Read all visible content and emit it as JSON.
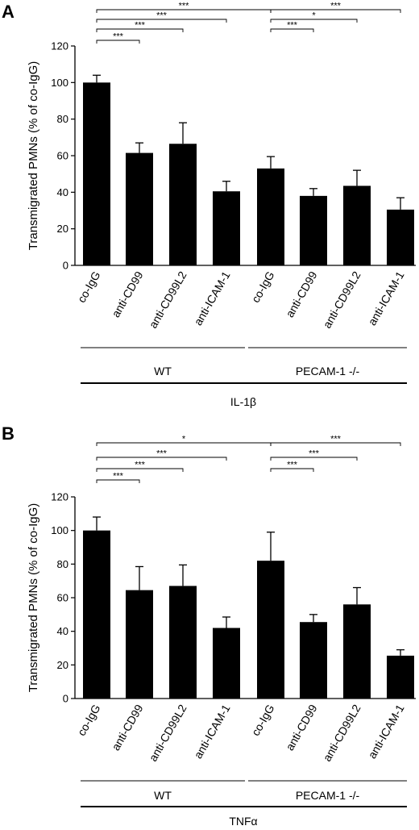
{
  "chart_data": [
    {
      "type": "bar",
      "panel_label": "A",
      "ylabel": "Transmigrated PMNs (% of co-IgG)",
      "ylim": [
        0,
        120
      ],
      "yticks": [
        0,
        20,
        40,
        60,
        80,
        100,
        120
      ],
      "categories": [
        "co-IgG",
        "anti-CD99",
        "anti-CD99L2",
        "anti-ICAM-1",
        "co-IgG",
        "anti-CD99",
        "anti-CD99L2",
        "anti-ICAM-1"
      ],
      "values": [
        100,
        61.5,
        66.5,
        40.5,
        53,
        38,
        43.5,
        30.5
      ],
      "errors": [
        4,
        5.5,
        11.5,
        5.5,
        6.5,
        4,
        8.5,
        6.5
      ],
      "groups": [
        {
          "label": "WT",
          "from": 0,
          "to": 3
        },
        {
          "label": "PECAM-1 -/-",
          "from": 4,
          "to": 7
        }
      ],
      "stimulus": "IL-1β",
      "significance": [
        {
          "from": 0,
          "to": 4,
          "label": "***"
        },
        {
          "from": 0,
          "to": 3,
          "label": "***"
        },
        {
          "from": 0,
          "to": 2,
          "label": "***"
        },
        {
          "from": 0,
          "to": 1,
          "label": "***"
        },
        {
          "from": 4,
          "to": 7,
          "label": "***"
        },
        {
          "from": 4,
          "to": 6,
          "label": "*"
        },
        {
          "from": 4,
          "to": 5,
          "label": "***"
        }
      ]
    },
    {
      "type": "bar",
      "panel_label": "B",
      "ylabel": "Transmigrated PMNs (% of co-IgG)",
      "ylim": [
        0,
        120
      ],
      "yticks": [
        0,
        20,
        40,
        60,
        80,
        100,
        120
      ],
      "categories": [
        "co-IgG",
        "anti-CD99",
        "anti-CD99L2",
        "anti-ICAM-1",
        "co-IgG",
        "anti-CD99",
        "anti-CD99L2",
        "anti-ICAM-1"
      ],
      "values": [
        100,
        64.5,
        67,
        42,
        82,
        45.5,
        56,
        25.5
      ],
      "errors": [
        8,
        14,
        12.5,
        6.5,
        17,
        4.5,
        10,
        3.5
      ],
      "groups": [
        {
          "label": "WT",
          "from": 0,
          "to": 3
        },
        {
          "label": "PECAM-1 -/-",
          "from": 4,
          "to": 7
        }
      ],
      "stimulus": "TNFα",
      "significance": [
        {
          "from": 0,
          "to": 4,
          "label": "*"
        },
        {
          "from": 0,
          "to": 3,
          "label": "***"
        },
        {
          "from": 0,
          "to": 2,
          "label": "***"
        },
        {
          "from": 0,
          "to": 1,
          "label": "***"
        },
        {
          "from": 4,
          "to": 7,
          "label": "***"
        },
        {
          "from": 4,
          "to": 6,
          "label": "***"
        },
        {
          "from": 4,
          "to": 5,
          "label": "***"
        }
      ]
    }
  ]
}
